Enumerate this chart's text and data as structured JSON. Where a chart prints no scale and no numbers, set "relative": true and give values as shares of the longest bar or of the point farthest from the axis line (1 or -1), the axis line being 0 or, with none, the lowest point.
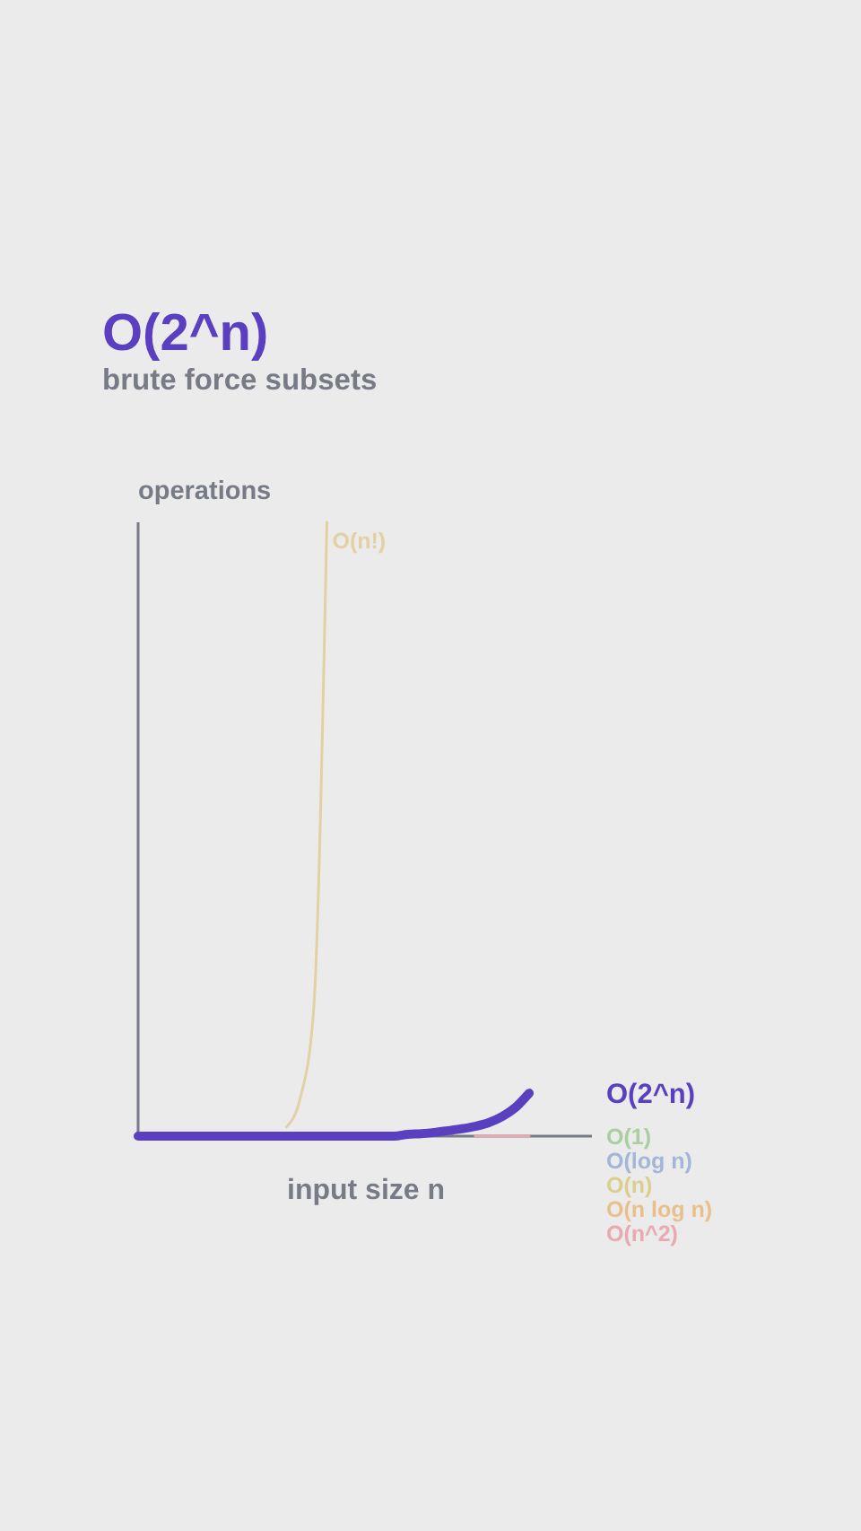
{
  "chart_data": {
    "type": "line",
    "title": "O(2^n)",
    "subtitle": "brute force subsets",
    "xlabel": "input size n",
    "ylabel": "operations",
    "relative": true,
    "categories": [
      null,
      null,
      null,
      null,
      null,
      null,
      null,
      null,
      null,
      null,
      null,
      null,
      null,
      null,
      null,
      null,
      null,
      null,
      null,
      null,
      null,
      null,
      null,
      null,
      null,
      null,
      null,
      null,
      null,
      null
    ],
    "series": [
      {
        "name": "O(1)",
        "color": "#a9cfa0",
        "values": [
          null,
          null,
          null,
          null,
          null,
          null,
          null,
          null,
          null,
          null,
          null,
          null,
          null,
          null,
          null,
          null,
          null,
          null,
          null,
          null,
          null,
          null,
          null,
          null,
          null,
          null,
          null,
          null,
          null,
          null
        ]
      },
      {
        "name": "O(log n)",
        "color": "#a3b6d6",
        "values": [
          null,
          null,
          null,
          null,
          null,
          null,
          null,
          null,
          null,
          null,
          null,
          null,
          null,
          null,
          null,
          null,
          null,
          null,
          null,
          null,
          null,
          null,
          null,
          null,
          null,
          null,
          null,
          null,
          null,
          null
        ]
      },
      {
        "name": "O(n)",
        "color": "#dcce8e",
        "values": [
          null,
          null,
          null,
          null,
          null,
          null,
          null,
          null,
          null,
          null,
          null,
          null,
          null,
          null,
          null,
          null,
          null,
          null,
          null,
          null,
          null,
          null,
          null,
          null,
          null,
          null,
          null,
          null,
          null,
          null
        ]
      },
      {
        "name": "O(n log n)",
        "color": "#e8c08c",
        "values": [
          null,
          null,
          null,
          null,
          null,
          null,
          null,
          null,
          null,
          null,
          null,
          null,
          null,
          null,
          null,
          null,
          null,
          null,
          null,
          null,
          null,
          null,
          null,
          null,
          null,
          null,
          null,
          null,
          null,
          null
        ]
      },
      {
        "name": "O(n^2)",
        "color": "#e8a9b0",
        "values": [
          null,
          null,
          null,
          null,
          null,
          null,
          null,
          null,
          null,
          null,
          null,
          null,
          null,
          null,
          null,
          null,
          null,
          null,
          null,
          null,
          null,
          null,
          null,
          null,
          null,
          0,
          0,
          0,
          0,
          0
        ]
      },
      {
        "name": "O(n!)",
        "color": "#e3d1a3",
        "values": [
          null,
          null,
          null,
          null,
          null,
          null,
          null,
          null,
          null,
          null,
          null,
          0.015,
          0.06,
          0.2,
          1,
          null,
          null,
          null,
          null,
          null,
          null,
          null,
          null,
          null,
          null,
          null,
          null,
          null,
          null,
          null
        ]
      },
      {
        "name": "O(2^n)",
        "color": "#5a3fc0",
        "values": [
          0,
          0,
          0,
          0,
          0,
          0,
          0,
          0,
          0,
          0,
          0,
          0,
          0,
          0,
          0,
          0,
          0,
          0,
          0,
          0,
          0.003,
          0.004,
          0.006,
          0.009,
          0.012,
          0.016,
          0.022,
          0.032,
          0.047,
          0.07
        ]
      }
    ]
  }
}
